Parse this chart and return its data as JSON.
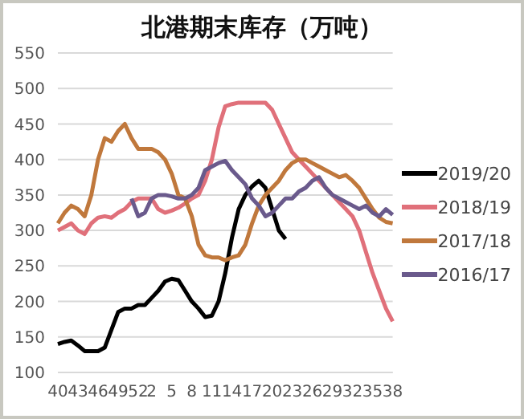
{
  "chart_data": {
    "type": "line",
    "title": "北港期末库存（万吨）",
    "categories": [
      "40",
      null,
      null,
      "43",
      null,
      null,
      "46",
      null,
      null,
      "49",
      null,
      null,
      "52",
      null,
      "2",
      null,
      null,
      "5",
      null,
      null,
      "8",
      null,
      null,
      "11",
      null,
      null,
      "14",
      null,
      null,
      "17",
      null,
      null,
      "20",
      null,
      null,
      "23",
      null,
      null,
      "26",
      null,
      null,
      "29",
      null,
      null,
      "32",
      null,
      null,
      "35",
      null,
      null,
      "38"
    ],
    "series": [
      {
        "name": "2019/20",
        "color": "#000000",
        "values": [
          140,
          143,
          145,
          138,
          130,
          130,
          130,
          135,
          160,
          185,
          190,
          190,
          195,
          195,
          205,
          215,
          228,
          232,
          230,
          215,
          200,
          190,
          178,
          180,
          200,
          240,
          290,
          330,
          350,
          362,
          370,
          360,
          330,
          300,
          288,
          null,
          null,
          null,
          null,
          null,
          null,
          null,
          null,
          null,
          null,
          null,
          null,
          null,
          null,
          null,
          null
        ]
      },
      {
        "name": "2018/19",
        "color": "#e0707a",
        "values": [
          300,
          305,
          310,
          300,
          295,
          310,
          318,
          320,
          318,
          325,
          330,
          340,
          345,
          345,
          345,
          330,
          325,
          328,
          332,
          338,
          345,
          350,
          370,
          400,
          445,
          475,
          478,
          480,
          480,
          480,
          480,
          480,
          470,
          450,
          430,
          410,
          400,
          390,
          380,
          370,
          360,
          350,
          340,
          330,
          320,
          300,
          270,
          240,
          215,
          190,
          172
        ]
      },
      {
        "name": "2017/18",
        "color": "#c0783c",
        "values": [
          310,
          325,
          335,
          330,
          320,
          350,
          400,
          430,
          425,
          440,
          450,
          430,
          415,
          415,
          415,
          410,
          400,
          380,
          350,
          345,
          320,
          280,
          265,
          262,
          262,
          258,
          262,
          265,
          280,
          310,
          335,
          350,
          360,
          370,
          385,
          395,
          400,
          400,
          395,
          390,
          385,
          380,
          375,
          378,
          370,
          360,
          345,
          330,
          318,
          312,
          310
        ]
      },
      {
        "name": "2016/17",
        "color": "#6a5a8c",
        "values": [
          null,
          null,
          null,
          null,
          null,
          null,
          null,
          null,
          null,
          null,
          null,
          345,
          320,
          325,
          345,
          350,
          350,
          348,
          345,
          345,
          350,
          360,
          385,
          390,
          395,
          398,
          385,
          375,
          365,
          345,
          335,
          320,
          325,
          335,
          345,
          345,
          355,
          360,
          370,
          375,
          360,
          350,
          345,
          340,
          335,
          330,
          335,
          325,
          320,
          330,
          322
        ]
      }
    ],
    "ylim": [
      100,
      550
    ],
    "yticks": [
      100,
      150,
      200,
      250,
      300,
      350,
      400,
      450,
      500,
      550
    ],
    "grid": "y",
    "legend": "right",
    "marker": "none",
    "line_style": "solid"
  }
}
